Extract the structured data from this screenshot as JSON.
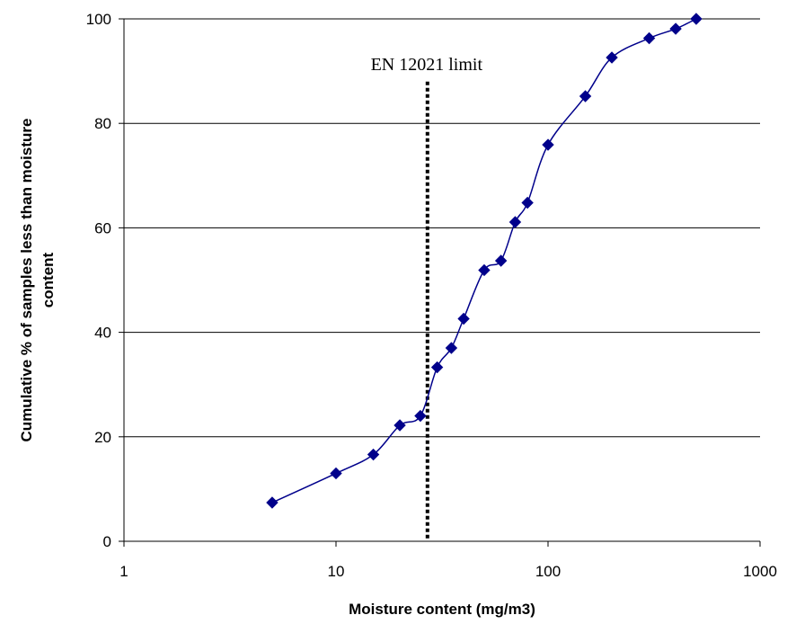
{
  "chart_data": {
    "type": "line",
    "xscale": "log",
    "xlabel": "Moisture content (mg/m3)",
    "ylabel": "Cumulative % of samples less than moisture content",
    "xlim": [
      1,
      1000
    ],
    "ylim": [
      0,
      100
    ],
    "xticks": [
      "1",
      "10",
      "100",
      "1000"
    ],
    "yticks": [
      "0",
      "20",
      "40",
      "60",
      "80",
      "100"
    ],
    "grid": "horizontal",
    "series": [
      {
        "color": "#00008b",
        "marker": "diamond",
        "x": [
          5,
          10,
          15,
          20,
          25,
          30,
          35,
          40,
          50,
          60,
          70,
          80,
          100,
          150,
          200,
          300,
          400,
          500
        ],
        "y": [
          7.4,
          13,
          16.6,
          22.2,
          24,
          33.3,
          37,
          42.6,
          51.9,
          53.7,
          61.1,
          64.8,
          75.9,
          85.2,
          92.6,
          96.3,
          98.1,
          100
        ]
      }
    ],
    "annotations": [
      {
        "text": "EN 12021 limit",
        "x": 27,
        "line_style": "dotted",
        "y_top": 88
      }
    ]
  }
}
